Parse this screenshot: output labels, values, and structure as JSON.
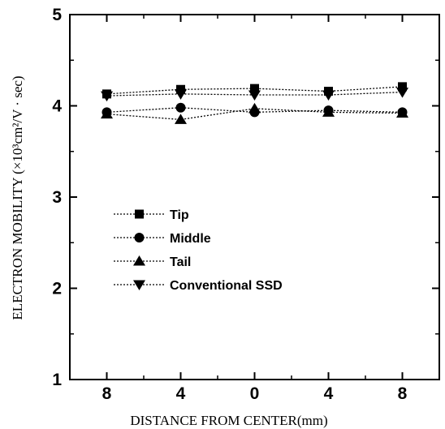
{
  "chart_data": {
    "type": "line",
    "xlabel": "DISTANCE FROM CENTER(mm)",
    "ylabel": "ELECTRON MOBILITY (×10³cm²/V · sec)",
    "x_tick_labels": [
      "8",
      "4",
      "0",
      "4",
      "8"
    ],
    "y_tick_labels": [
      "1",
      "2",
      "3",
      "4",
      "5"
    ],
    "x_positions": [
      -8,
      -4,
      0,
      4,
      8
    ],
    "ylim": [
      1,
      5
    ],
    "grid": false,
    "legend_position": "center-left",
    "series": [
      {
        "name": "Tip",
        "marker": "square",
        "values": [
          4.13,
          4.18,
          4.19,
          4.16,
          4.21
        ]
      },
      {
        "name": "Middle",
        "marker": "circle",
        "values": [
          3.93,
          3.98,
          3.93,
          3.95,
          3.93
        ]
      },
      {
        "name": "Tail",
        "marker": "triangle-up",
        "values": [
          3.91,
          3.85,
          3.97,
          3.93,
          3.92
        ]
      },
      {
        "name": "Conventional SSD",
        "marker": "triangle-down",
        "values": [
          4.11,
          4.13,
          4.12,
          4.12,
          4.15
        ]
      }
    ]
  }
}
